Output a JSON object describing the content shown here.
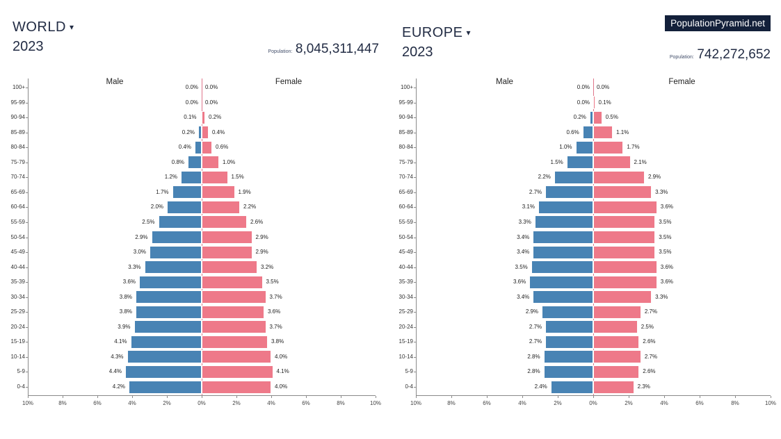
{
  "badge": {
    "text": "PopulationPyramid.net"
  },
  "charts": [
    {
      "region": "WORLD",
      "dropdown_caret": "▾",
      "year": "2023",
      "population_label": "Population:",
      "population": "8,045,311,447"
    },
    {
      "region": "EUROPE",
      "dropdown_caret": "▾",
      "year": "2023",
      "population_label": "Population:",
      "population": "742,272,652"
    }
  ],
  "colors": {
    "male": "#4883b4",
    "female": "#ee7989",
    "badge_bg": "#13203a",
    "header_text": "#222c44",
    "axis": "#8a8a8a",
    "center_line": "#df758a"
  },
  "chart_data": [
    {
      "type": "bar",
      "subtype": "population_pyramid",
      "title": "WORLD 2023",
      "left_label": "Male",
      "right_label": "Female",
      "value_unit": "%",
      "categories_bottom_to_top": [
        "0-4",
        "5-9",
        "10-14",
        "15-19",
        "20-24",
        "25-29",
        "30-34",
        "35-39",
        "40-44",
        "45-49",
        "50-54",
        "55-59",
        "60-64",
        "65-69",
        "70-74",
        "75-79",
        "80-84",
        "85-89",
        "90-94",
        "95-99",
        "100+"
      ],
      "series": [
        {
          "name": "Male",
          "side": "left",
          "color": "#4883b4",
          "values": [
            4.2,
            4.4,
            4.3,
            4.1,
            3.9,
            3.8,
            3.8,
            3.6,
            3.3,
            3.0,
            2.9,
            2.5,
            2.0,
            1.7,
            1.2,
            0.8,
            0.4,
            0.2,
            0.1,
            0.0,
            0.0
          ]
        },
        {
          "name": "Female",
          "side": "right",
          "color": "#ee7989",
          "values": [
            4.0,
            4.1,
            4.0,
            3.8,
            3.7,
            3.6,
            3.7,
            3.5,
            3.2,
            2.9,
            2.9,
            2.6,
            2.2,
            1.9,
            1.5,
            1.0,
            0.6,
            0.4,
            0.2,
            0.0,
            0.0
          ]
        }
      ],
      "x_axis": {
        "max_percent": 10,
        "ticks": [
          "10%",
          "8%",
          "6%",
          "4%",
          "2%",
          "0%",
          "2%",
          "4%",
          "6%",
          "8%",
          "10%"
        ]
      }
    },
    {
      "type": "bar",
      "subtype": "population_pyramid",
      "title": "EUROPE 2023",
      "left_label": "Male",
      "right_label": "Female",
      "value_unit": "%",
      "categories_bottom_to_top": [
        "0-4",
        "5-9",
        "10-14",
        "15-19",
        "20-24",
        "25-29",
        "30-34",
        "35-39",
        "40-44",
        "45-49",
        "50-54",
        "55-59",
        "60-64",
        "65-69",
        "70-74",
        "75-79",
        "80-84",
        "85-89",
        "90-94",
        "95-99",
        "100+"
      ],
      "series": [
        {
          "name": "Male",
          "side": "left",
          "color": "#4883b4",
          "values": [
            2.4,
            2.8,
            2.8,
            2.7,
            2.7,
            2.9,
            3.4,
            3.6,
            3.5,
            3.4,
            3.4,
            3.3,
            3.1,
            2.7,
            2.2,
            1.5,
            1.0,
            0.6,
            0.2,
            0.0,
            0.0
          ]
        },
        {
          "name": "Female",
          "side": "right",
          "color": "#ee7989",
          "values": [
            2.3,
            2.6,
            2.7,
            2.6,
            2.5,
            2.7,
            3.3,
            3.6,
            3.6,
            3.5,
            3.5,
            3.5,
            3.6,
            3.3,
            2.9,
            2.1,
            1.7,
            1.1,
            0.5,
            0.1,
            0.0
          ]
        }
      ],
      "x_axis": {
        "max_percent": 10,
        "ticks": [
          "10%",
          "8%",
          "6%",
          "4%",
          "2%",
          "0%",
          "2%",
          "4%",
          "6%",
          "8%",
          "10%"
        ]
      }
    }
  ]
}
